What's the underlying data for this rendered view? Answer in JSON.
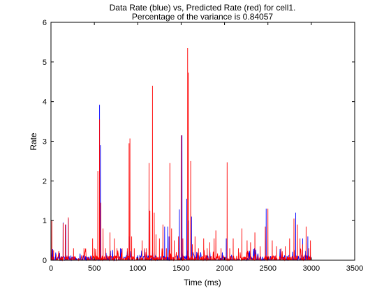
{
  "chart_data": {
    "type": "line",
    "title": "Data Rate (blue) vs, Predicted Rate (red) for cell1.",
    "subtitle": "Percentage of the variance is 0.84057",
    "xlabel": "Time (ms)",
    "ylabel": "Rate",
    "xlim": [
      0,
      3500
    ],
    "ylim": [
      0,
      6
    ],
    "xticks": [
      0,
      500,
      1000,
      1500,
      2000,
      2500,
      3000,
      3500
    ],
    "yticks": [
      0,
      1,
      2,
      3,
      4,
      5,
      6
    ],
    "grid": false,
    "legend": "none",
    "series": [
      {
        "color": "#0000ff",
        "peaks": [
          [
            20,
            0.28
          ],
          [
            100,
            0.18
          ],
          [
            140,
            0.95
          ],
          [
            170,
            0.9
          ],
          [
            200,
            1.05
          ],
          [
            560,
            3.92
          ],
          [
            570,
            2.9
          ],
          [
            800,
            0.3
          ],
          [
            900,
            0.6
          ],
          [
            1130,
            1.3
          ],
          [
            1310,
            0.85
          ],
          [
            1345,
            0.85
          ],
          [
            1360,
            0.6
          ],
          [
            1480,
            1.28
          ],
          [
            1510,
            3.15
          ],
          [
            1565,
            1.55
          ],
          [
            1585,
            1.0
          ],
          [
            1620,
            1.1
          ],
          [
            2020,
            0.55
          ],
          [
            2480,
            1.3
          ],
          [
            2820,
            1.2
          ],
          [
            2900,
            0.55
          ],
          [
            2960,
            0.6
          ]
        ]
      },
      {
        "color": "#ff0000",
        "peaks": [
          [
            10,
            1.0
          ],
          [
            30,
            0.25
          ],
          [
            60,
            0.15
          ],
          [
            140,
            0.93
          ],
          [
            165,
            0.9
          ],
          [
            200,
            1.08
          ],
          [
            260,
            0.3
          ],
          [
            380,
            0.3
          ],
          [
            480,
            0.55
          ],
          [
            500,
            0.3
          ],
          [
            540,
            2.25
          ],
          [
            560,
            3.55
          ],
          [
            575,
            1.45
          ],
          [
            600,
            0.8
          ],
          [
            630,
            0.3
          ],
          [
            680,
            0.7
          ],
          [
            730,
            0.55
          ],
          [
            760,
            0.3
          ],
          [
            820,
            0.3
          ],
          [
            880,
            0.3
          ],
          [
            900,
            2.95
          ],
          [
            910,
            3.07
          ],
          [
            930,
            0.6
          ],
          [
            960,
            0.3
          ],
          [
            1050,
            0.5
          ],
          [
            1080,
            0.3
          ],
          [
            1100,
            0.3
          ],
          [
            1130,
            2.45
          ],
          [
            1140,
            1.25
          ],
          [
            1170,
            4.4
          ],
          [
            1190,
            1.2
          ],
          [
            1210,
            0.65
          ],
          [
            1250,
            0.55
          ],
          [
            1290,
            0.9
          ],
          [
            1330,
            0.3
          ],
          [
            1370,
            2.45
          ],
          [
            1390,
            0.8
          ],
          [
            1420,
            0.5
          ],
          [
            1470,
            0.6
          ],
          [
            1500,
            3.15
          ],
          [
            1520,
            0.55
          ],
          [
            1575,
            5.35
          ],
          [
            1582,
            4.73
          ],
          [
            1610,
            2.5
          ],
          [
            1630,
            0.4
          ],
          [
            1660,
            0.6
          ],
          [
            1700,
            0.3
          ],
          [
            1760,
            0.55
          ],
          [
            1800,
            0.3
          ],
          [
            1830,
            0.45
          ],
          [
            1880,
            0.55
          ],
          [
            1900,
            0.75
          ],
          [
            1960,
            0.3
          ],
          [
            2030,
            2.47
          ],
          [
            2060,
            0.3
          ],
          [
            2100,
            0.55
          ],
          [
            2160,
            0.3
          ],
          [
            2200,
            0.8
          ],
          [
            2260,
            0.5
          ],
          [
            2300,
            0.45
          ],
          [
            2350,
            0.7
          ],
          [
            2410,
            0.35
          ],
          [
            2470,
            0.85
          ],
          [
            2500,
            1.3
          ],
          [
            2550,
            0.5
          ],
          [
            2600,
            0.35
          ],
          [
            2650,
            0.3
          ],
          [
            2700,
            0.35
          ],
          [
            2750,
            0.55
          ],
          [
            2800,
            1.05
          ],
          [
            2840,
            0.9
          ],
          [
            2870,
            0.55
          ],
          [
            2900,
            0.4
          ],
          [
            2940,
            0.85
          ],
          [
            2970,
            0.3
          ],
          [
            2990,
            0.5
          ]
        ]
      }
    ]
  }
}
